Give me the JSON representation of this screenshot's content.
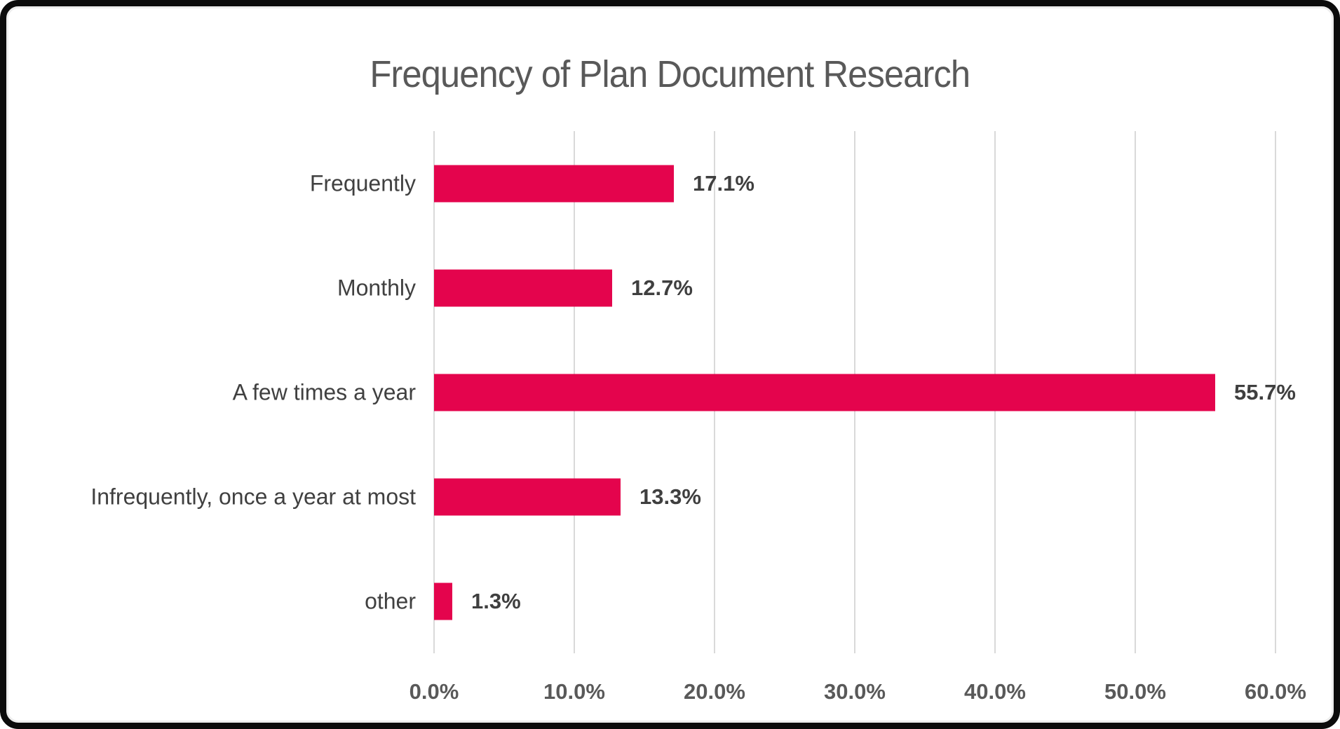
{
  "title": "Frequency of Plan Document Research",
  "colors": {
    "bar": "#e4044d",
    "title_text": "#595959",
    "category_text": "#404040",
    "value_text": "#3f3f3f",
    "tick_text": "#595959",
    "gridline": "#d9d9d9",
    "frame_border": "#0b0b0b",
    "background": "#ffffff"
  },
  "chart_data": {
    "type": "bar",
    "orientation": "horizontal",
    "title": "Frequency of Plan Document Research",
    "xlabel": "",
    "ylabel": "",
    "categories": [
      "Frequently",
      "Monthly",
      "A few times a year",
      "Infrequently, once a year at most",
      "other"
    ],
    "values": [
      17.1,
      12.7,
      55.7,
      13.3,
      1.3
    ],
    "value_labels": [
      "17.1%",
      "12.7%",
      "55.7%",
      "13.3%",
      "1.3%"
    ],
    "x_ticks": [
      "0.0%",
      "10.0%",
      "20.0%",
      "30.0%",
      "40.0%",
      "50.0%",
      "60.0%"
    ],
    "x_tick_values": [
      0,
      10,
      20,
      30,
      40,
      50,
      60
    ],
    "xlim": [
      0,
      60
    ],
    "grid": "vertical-gridlines-on",
    "legend": "none",
    "data_labels": "outside-end"
  }
}
